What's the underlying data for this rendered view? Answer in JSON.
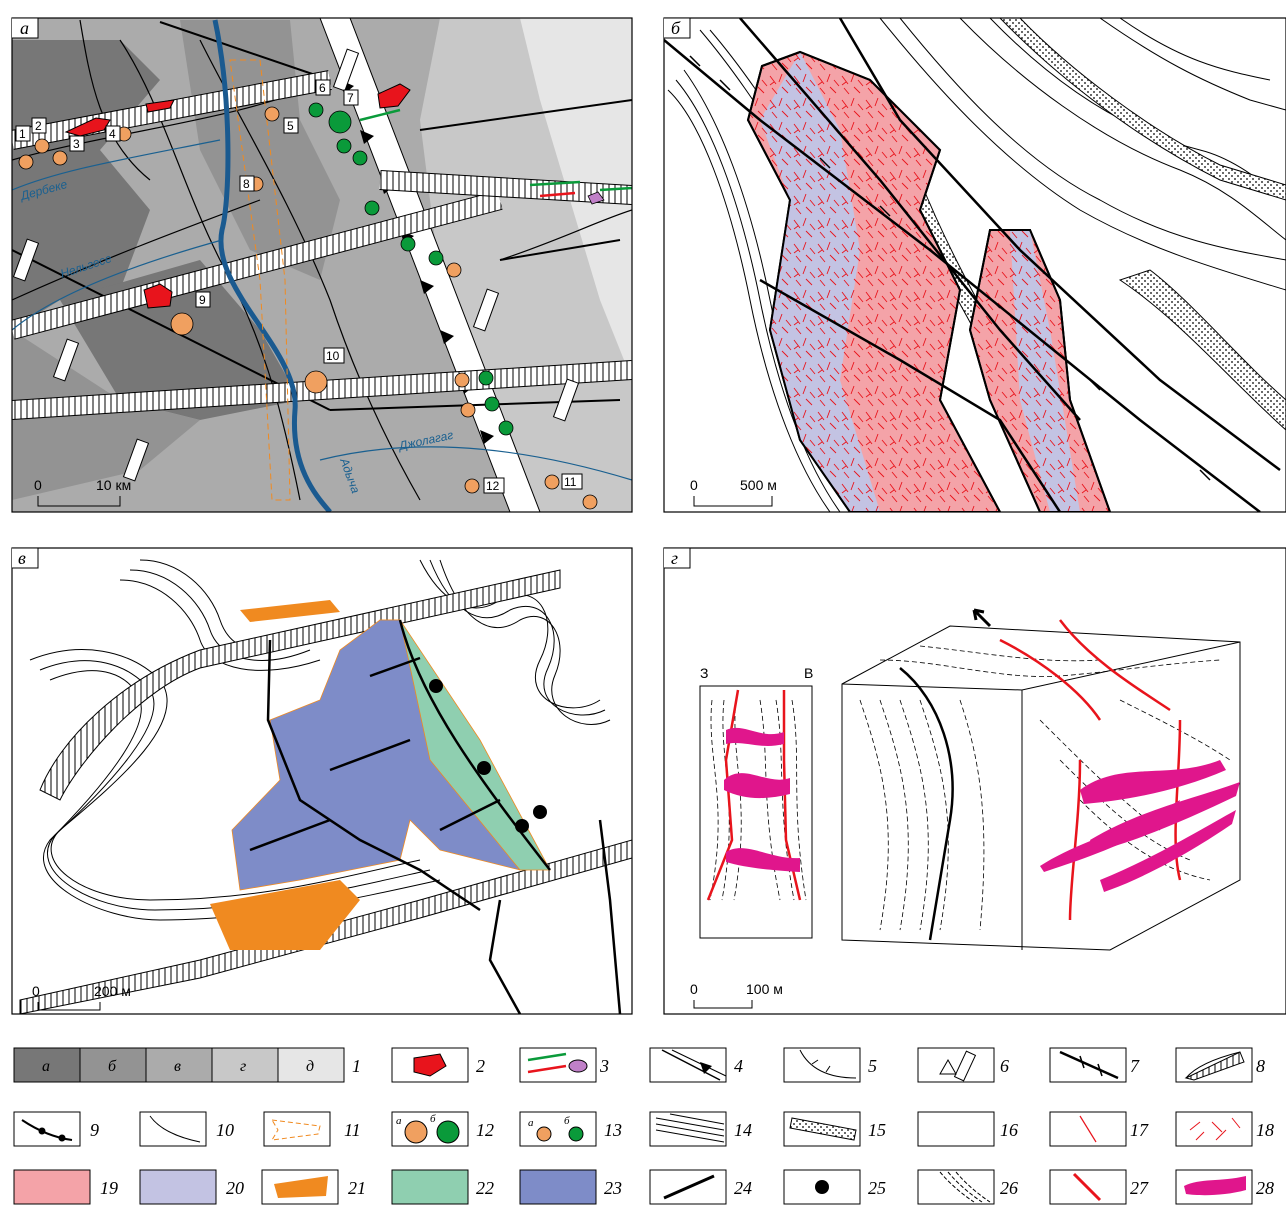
{
  "panels": {
    "a": {
      "label": "а",
      "numbers": [
        "1",
        "2",
        "3",
        "4",
        "5",
        "6",
        "7",
        "8",
        "9",
        "10",
        "11",
        "12"
      ],
      "rivers": [
        "Дербеке",
        "Нельгесе",
        "Адыча",
        "Джолагаг"
      ],
      "scale": {
        "zero": "0",
        "value": "10 км"
      }
    },
    "b": {
      "label": "б",
      "scale": {
        "zero": "0",
        "value": "500 м"
      }
    },
    "v": {
      "label": "в",
      "scale": {
        "zero": "0",
        "value": "200 м"
      }
    },
    "g": {
      "label": "г",
      "west": "З",
      "east": "В",
      "scale": {
        "zero": "0",
        "value": "100 м"
      }
    }
  },
  "legend": {
    "stage_letters": [
      "а",
      "б",
      "в",
      "г",
      "д"
    ],
    "stage_colors": [
      "#777777",
      "#939393",
      "#ababab",
      "#c8c8c8",
      "#e6e6e6"
    ],
    "numbers": [
      "1",
      "2",
      "3",
      "4",
      "5",
      "6",
      "7",
      "8",
      "9",
      "10",
      "11",
      "12",
      "13",
      "14",
      "15",
      "16",
      "17",
      "18",
      "19",
      "20",
      "21",
      "22",
      "23",
      "24",
      "25",
      "26",
      "27",
      "28"
    ],
    "sub_a": "а",
    "sub_b": "б"
  },
  "colors": {
    "intrusion_red": "#e8141c",
    "deposit_orange": "#f0a060",
    "deposit_green": "#0a9a3a",
    "pink_19": "#f4a3a8",
    "lilac_20": "#c3c3e3",
    "orange_21": "#f08a20",
    "teal_22": "#8fcfb0",
    "blue_23": "#7e8cc8",
    "magenta_28": "#e0168c",
    "river": "#1a6090"
  }
}
